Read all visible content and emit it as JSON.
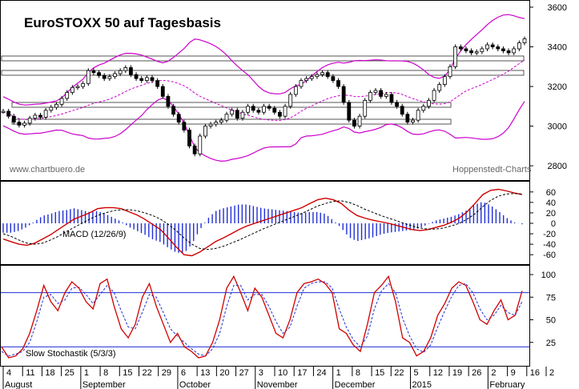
{
  "chart_data": [
    {
      "type": "candlestick",
      "title": "EuroSTOXX 50 auf Tagesbasis",
      "source_left": "www.chartbuero.de",
      "source_right": "Hoppenstedt-Charts",
      "ylim": [
        2740,
        3620
      ],
      "y_ticks": [
        2800,
        3000,
        3200,
        3400,
        3600
      ],
      "y_tick_labels": [
        "2800",
        "3000",
        "3200",
        "3400",
        "3600"
      ],
      "close_series": [
        3075,
        3050,
        3020,
        3005,
        3015,
        3040,
        3055,
        3045,
        3080,
        3095,
        3110,
        3140,
        3170,
        3195,
        3200,
        3215,
        3280,
        3270,
        3255,
        3240,
        3250,
        3265,
        3280,
        3295,
        3260,
        3240,
        3230,
        3245,
        3230,
        3200,
        3150,
        3100,
        3060,
        3020,
        2980,
        2900,
        2860,
        2950,
        3000,
        3010,
        3020,
        3030,
        3060,
        3080,
        3040,
        3070,
        3100,
        3080,
        3070,
        3100,
        3090,
        3070,
        3050,
        3100,
        3160,
        3200,
        3230,
        3240,
        3250,
        3260,
        3270,
        3250,
        3230,
        3200,
        3120,
        3030,
        3000,
        3050,
        3130,
        3170,
        3180,
        3150,
        3160,
        3120,
        3100,
        3060,
        3020,
        3030,
        3080,
        3100,
        3130,
        3180,
        3210,
        3250,
        3300,
        3400,
        3390,
        3380,
        3370,
        3375,
        3390,
        3410,
        3400,
        3390,
        3380,
        3370,
        3390,
        3420,
        3440
      ]
    },
    {
      "type": "line",
      "label": "MACD (12/26/9)",
      "ylim": [
        -75,
        75
      ],
      "y_ticks": [
        60,
        40,
        20,
        0,
        -20,
        -40,
        -60
      ],
      "y_tick_labels": [
        "60",
        "40",
        "20",
        "0",
        "-20",
        "-40",
        "-60"
      ],
      "series": [
        {
          "values": [
            -30,
            -35,
            -40,
            -42,
            -38,
            -30,
            -22,
            -12,
            -2,
            8,
            14,
            20,
            28,
            30,
            30,
            28,
            22,
            16,
            8,
            -2,
            -12,
            -28,
            -45,
            -60,
            -62,
            -55,
            -45,
            -35,
            -28,
            -20,
            -12,
            -5,
            0,
            5,
            10,
            15,
            20,
            25,
            30,
            38,
            45,
            48,
            45,
            38,
            25,
            15,
            10,
            6,
            3,
            0,
            -4,
            -8,
            -12,
            -14,
            -12,
            -8,
            -4,
            2,
            10,
            22,
            38,
            55,
            63,
            65,
            62,
            58,
            55
          ]
        },
        {
          "values": [
            -20,
            -25,
            -32,
            -38,
            -40,
            -38,
            -32,
            -25,
            -16,
            -8,
            0,
            8,
            15,
            20,
            24,
            26,
            26,
            24,
            20,
            15,
            8,
            -2,
            -14,
            -28,
            -40,
            -48,
            -50,
            -48,
            -44,
            -38,
            -32,
            -25,
            -18,
            -11,
            -5,
            1,
            7,
            13,
            19,
            26,
            33,
            38,
            42,
            43,
            40,
            34,
            27,
            21,
            15,
            10,
            5,
            0,
            -5,
            -9,
            -11,
            -11,
            -9,
            -5,
            0,
            8,
            18,
            32,
            44,
            52,
            56,
            57,
            56
          ]
        }
      ]
    },
    {
      "type": "line",
      "label": "Slow Stochastik (5/3/3)",
      "ylim": [
        0,
        108
      ],
      "y_ticks": [
        100,
        75,
        50,
        25
      ],
      "y_tick_labels": [
        "100",
        "75",
        "50",
        "25"
      ],
      "reference_lines": [
        80,
        20
      ],
      "series": [
        {
          "values": [
            20,
            8,
            10,
            18,
            35,
            60,
            88,
            70,
            60,
            80,
            92,
            85,
            70,
            62,
            90,
            95,
            65,
            40,
            30,
            45,
            75,
            90,
            65,
            45,
            25,
            35,
            20,
            15,
            8,
            10,
            25,
            50,
            85,
            98,
            80,
            60,
            85,
            75,
            55,
            35,
            30,
            50,
            80,
            90,
            92,
            95,
            90,
            80,
            40,
            35,
            22,
            15,
            45,
            80,
            88,
            98,
            70,
            30,
            25,
            10,
            15,
            30,
            55,
            68,
            85,
            92,
            88,
            70,
            50,
            45,
            60,
            72,
            50,
            55,
            82
          ]
        },
        {
          "values": [
            15,
            10,
            12,
            15,
            25,
            48,
            75,
            78,
            68,
            72,
            85,
            86,
            78,
            68,
            78,
            88,
            80,
            60,
            42,
            40,
            58,
            78,
            75,
            58,
            40,
            32,
            25,
            18,
            12,
            10,
            18,
            35,
            65,
            88,
            88,
            72,
            78,
            78,
            65,
            48,
            35,
            42,
            65,
            85,
            90,
            92,
            92,
            85,
            62,
            42,
            28,
            20,
            32,
            62,
            82,
            90,
            80,
            52,
            32,
            18,
            14,
            22,
            42,
            60,
            76,
            88,
            90,
            80,
            62,
            50,
            55,
            66,
            58,
            55,
            70
          ]
        }
      ]
    }
  ],
  "x_axis": {
    "day_ticks": [
      "4",
      "11",
      "18",
      "25",
      "1",
      "8",
      "15",
      "22",
      "29",
      "6",
      "13",
      "20",
      "27",
      "3",
      "10",
      "17",
      "24",
      "1",
      "8",
      "15",
      "22",
      "5",
      "12",
      "19",
      "26",
      "2",
      "9",
      "16",
      "2"
    ],
    "months": [
      "August",
      "September",
      "October",
      "November",
      "December",
      "2015",
      "February"
    ]
  }
}
